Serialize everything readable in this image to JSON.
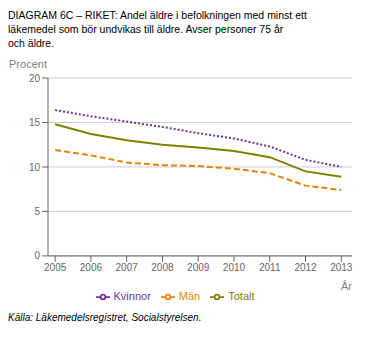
{
  "chart_data": {
    "type": "line",
    "title": "DIAGRAM 6C – RIKET: Andel äldre i befolkningen med minst ett\nläkemedel som bör undvikas till äldre. Avser personer 75 år\noch äldre.",
    "x_label": "År",
    "y_label": "Procent",
    "annotations": [
      "Källa: Läkemedelsregistret, Socialstyrelsen."
    ],
    "x": [
      2005,
      2006,
      2007,
      2008,
      2009,
      2010,
      2011,
      2012,
      2013
    ],
    "series": [
      {
        "name": "Totalt",
        "color": "#808000",
        "line_style": "solid",
        "values": [
          14.8,
          13.7,
          13.0,
          12.5,
          12.2,
          11.8,
          11.1,
          9.5,
          8.9
        ]
      },
      {
        "name": "Kvinnor",
        "color": "#7030a0",
        "line_style": "dotted",
        "values": [
          16.4,
          15.7,
          15.1,
          14.5,
          13.8,
          13.2,
          12.3,
          10.8,
          10.0
        ]
      },
      {
        "name": "Män",
        "color": "#e8820a",
        "line_style": "dashed",
        "values": [
          11.9,
          11.3,
          10.5,
          10.2,
          10.1,
          9.8,
          9.3,
          7.9,
          7.4
        ]
      }
    ],
    "xlim": [
      2004.8,
      2013.3
    ],
    "xticks": [
      2005,
      2006,
      2007,
      2008,
      2009,
      2010,
      2011,
      2012,
      2013
    ],
    "ylim": [
      0,
      20
    ],
    "yticks": [
      0,
      5,
      10,
      15,
      20
    ],
    "grid": true,
    "legend": "bottom"
  }
}
